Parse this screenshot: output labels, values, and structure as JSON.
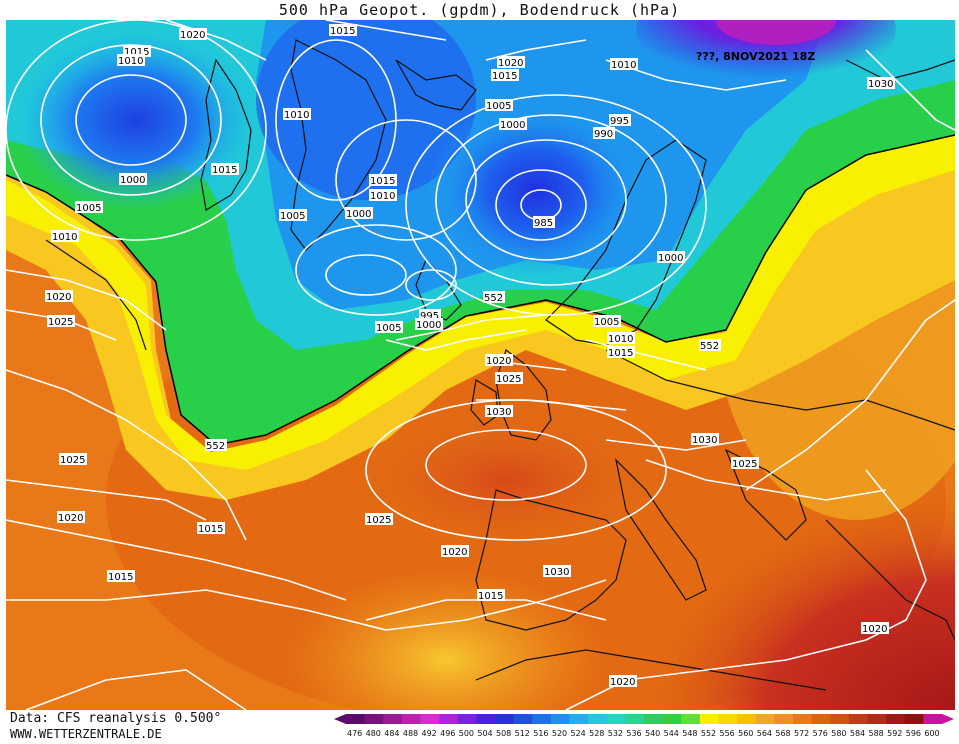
{
  "title": "500 hPa Geopot. (gpdm), Bodendruck (hPa)",
  "footer": {
    "source": "Data: CFS reanalysis 0.500°",
    "url": "WWW.WETTERZENTRALE.DE"
  },
  "stamp": "???, 8NOV2021 18Z",
  "map_data": {
    "type": "weather-map",
    "region": "Europe / North Atlantic",
    "fields": [
      "500 hPa geopotential (gpdm)",
      "surface pressure (hPa)"
    ],
    "pressure_labels": [
      "1015",
      "1010",
      "1020",
      "1015",
      "1020",
      "1015",
      "1010",
      "1030",
      "1000",
      "1015",
      "1005",
      "1010",
      "1020",
      "1025",
      "1010",
      "1005",
      "1000",
      "1015",
      "1010",
      "1005",
      "1000",
      "995",
      "990",
      "985",
      "1000",
      "995",
      "1005",
      "1000",
      "1005",
      "1010",
      "1015",
      "1020",
      "1025",
      "1030",
      "1030",
      "1025",
      "1025",
      "1020",
      "1015",
      "1020",
      "1015",
      "1025",
      "1015",
      "1020",
      "1020",
      "552",
      "552",
      "552"
    ],
    "colors": {
      "deep_low": "#7a1aa8",
      "blue": "#1e3fe0",
      "cyan": "#20b4f0",
      "green": "#28d04a",
      "yellow": "#f8e000",
      "orange": "#f0a020",
      "dark_orange": "#e06010",
      "red": "#c83020"
    }
  },
  "legend": {
    "values": [
      "476",
      "480",
      "484",
      "488",
      "492",
      "496",
      "500",
      "504",
      "508",
      "512",
      "516",
      "520",
      "524",
      "528",
      "532",
      "536",
      "540",
      "544",
      "548",
      "552",
      "556",
      "560",
      "564",
      "568",
      "572",
      "576",
      "580",
      "584",
      "588",
      "592",
      "596",
      "600"
    ],
    "colors": [
      "#5a0a6a",
      "#7a1080",
      "#9a1a98",
      "#c020b0",
      "#e028d0",
      "#b020e0",
      "#7a20e8",
      "#4a20e8",
      "#2a30e0",
      "#1e50e8",
      "#1e70f0",
      "#1e90f0",
      "#20b0f0",
      "#20c8e0",
      "#20d8c0",
      "#20d890",
      "#28d060",
      "#30d040",
      "#60e030",
      "#f8f000",
      "#f8d800",
      "#f8c000",
      "#f0a820",
      "#f09020",
      "#e87818",
      "#e06010",
      "#d85010",
      "#c83818",
      "#b82818",
      "#a01818",
      "#901010",
      "#d010a0"
    ]
  }
}
